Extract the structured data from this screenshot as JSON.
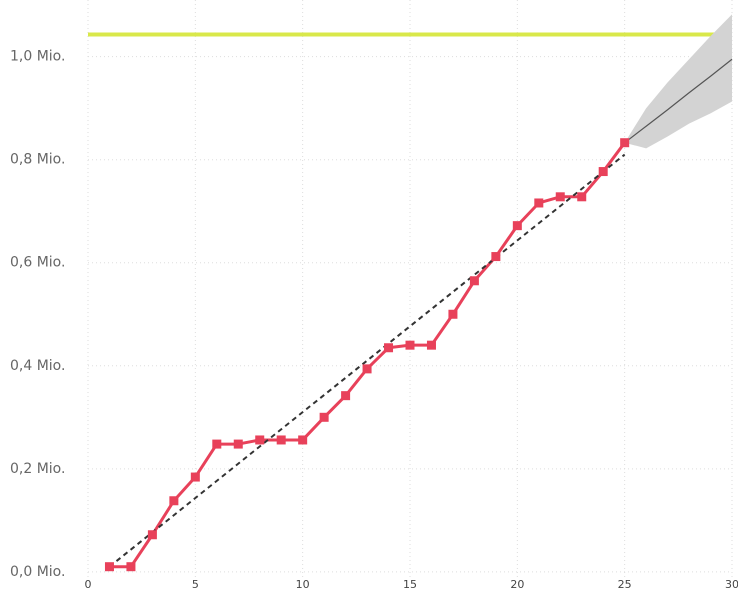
{
  "chart_data": {
    "type": "line",
    "x": [
      1,
      2,
      3,
      4,
      5,
      6,
      7,
      8,
      9,
      10,
      11,
      12,
      13,
      14,
      15,
      16,
      17,
      18,
      19,
      20,
      21,
      22,
      23,
      24,
      25
    ],
    "series": [
      {
        "color": "#e8415a",
        "values": [
          0.01,
          0.01,
          0.072,
          0.138,
          0.184,
          0.248,
          0.248,
          0.256,
          0.256,
          0.256,
          0.3,
          0.342,
          0.394,
          0.435,
          0.44,
          0.44,
          0.5,
          0.565,
          0.612,
          0.672,
          0.716,
          0.728,
          0.728,
          0.777,
          0.833
        ]
      }
    ],
    "trend": {
      "color": "#333333",
      "x": [
        1,
        25
      ],
      "values": [
        0.01,
        0.81
      ]
    },
    "forecast": {
      "color": "#555555",
      "band_color": "#d3d3d3",
      "x": [
        25,
        26,
        27,
        28,
        29,
        30
      ],
      "values": [
        0.833,
        0.865,
        0.897,
        0.93,
        0.962,
        0.995
      ],
      "upper": [
        0.833,
        0.9,
        0.95,
        0.995,
        1.04,
        1.082
      ],
      "lower": [
        0.833,
        0.822,
        0.845,
        0.87,
        0.89,
        0.913
      ]
    },
    "reference_line": {
      "value": 1.043,
      "color": "#d9e84a"
    },
    "xlim": [
      0,
      30
    ],
    "xticks": [
      0,
      5,
      10,
      15,
      20,
      25,
      30
    ],
    "ylim": [
      -0.01,
      1.11
    ],
    "yticks": [
      {
        "value": 0,
        "label": "0,0 Mio."
      },
      {
        "value": 0.2,
        "label": "0,2 Mio."
      },
      {
        "value": 0.4,
        "label": "0,4 Mio."
      },
      {
        "value": 0.6,
        "label": "0,6 Mio."
      },
      {
        "value": 0.8,
        "label": "0,8 Mio."
      },
      {
        "value": 1.0,
        "label": "1,0 Mio."
      }
    ],
    "grid": true
  }
}
